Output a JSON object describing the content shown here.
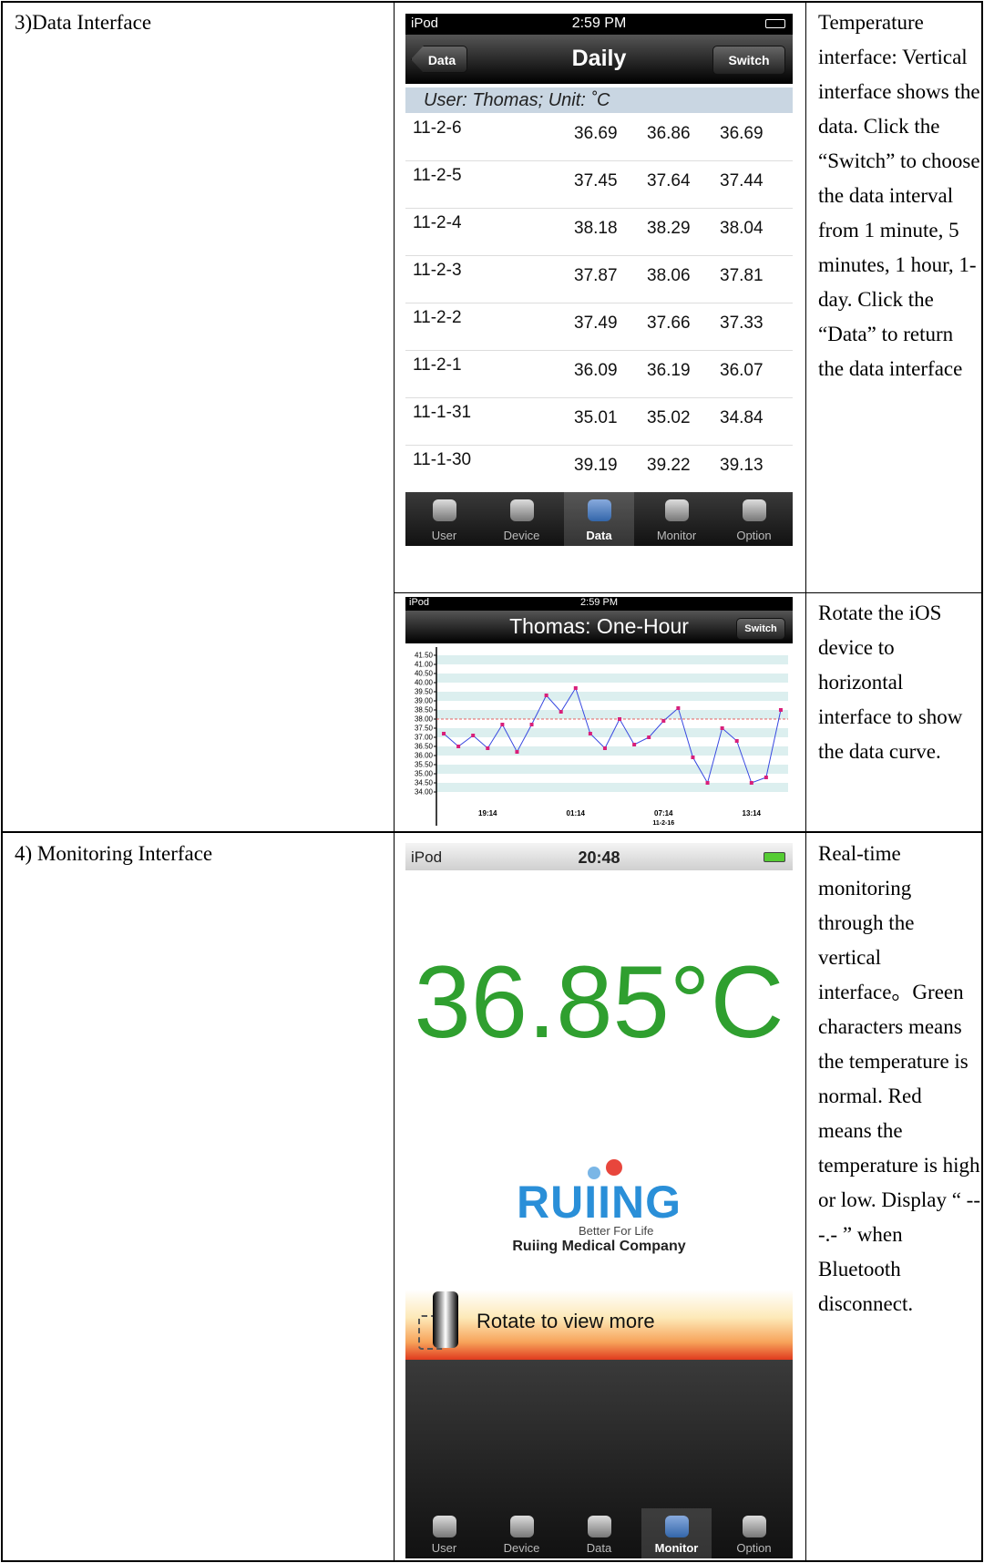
{
  "sections": [
    {
      "heading": "3)Data Interface",
      "daily_screen": {
        "status": {
          "carrier": "iPod",
          "time": "2:59 PM"
        },
        "back_button": "Data",
        "title": "Daily",
        "switch_button": "Switch",
        "subheader": "User: Thomas; Unit: ˚C",
        "rows": [
          [
            "11-2-6",
            "36.69",
            "36.86",
            "36.69"
          ],
          [
            "11-2-5",
            "37.45",
            "37.64",
            "37.44"
          ],
          [
            "11-2-4",
            "38.18",
            "38.29",
            "38.04"
          ],
          [
            "11-2-3",
            "37.87",
            "38.06",
            "37.81"
          ],
          [
            "11-2-2",
            "37.49",
            "37.66",
            "37.33"
          ],
          [
            "11-2-1",
            "36.09",
            "36.19",
            "36.07"
          ],
          [
            "11-1-31",
            "35.01",
            "35.02",
            "34.84"
          ],
          [
            "11-1-30",
            "39.19",
            "39.22",
            "39.13"
          ]
        ],
        "tabs": [
          "User",
          "Device",
          "Data",
          "Monitor",
          "Option"
        ],
        "selected_tab": 2
      },
      "daily_description": "Temperature interface: Vertical interface shows the data. Click the “Switch” to choose the data interval from 1 minute, 5 minutes, 1 hour, 1-day. Click the “Data” to return the data interface",
      "chart_screen": {
        "status": {
          "carrier": "iPod",
          "time": "2:59 PM"
        },
        "title": "Thomas: One-Hour",
        "switch_button": "Switch",
        "chart": {
          "type": "line",
          "categories": [
            null,
            null,
            null,
            "19:14",
            null,
            null,
            null,
            null,
            null,
            "01:14",
            null,
            null,
            null,
            null,
            null,
            "07:14",
            null,
            null,
            null,
            null,
            null,
            "13:14",
            null,
            null
          ],
          "x_sublabels": [
            null,
            null,
            null,
            null,
            null,
            null,
            null,
            null,
            null,
            null,
            null,
            null,
            null,
            null,
            null,
            "11-2-16",
            null,
            null,
            null,
            null,
            null,
            null,
            null,
            null
          ],
          "values": [
            37.2,
            36.5,
            37.1,
            36.4,
            37.7,
            36.2,
            37.7,
            39.3,
            38.4,
            39.7,
            37.2,
            36.4,
            38.0,
            36.6,
            37.0,
            37.9,
            38.6,
            35.9,
            34.5,
            37.5,
            36.8,
            34.5,
            34.8,
            38.5
          ],
          "color": "#3848e0",
          "marker_color": "#d81f7a",
          "reference_line": 38,
          "reference_color": "#e03030",
          "band_color": "#dcefef",
          "ylim": [
            33.75,
            41.75
          ],
          "yticks": [
            {
              "value": 34,
              "label": "34.00"
            },
            {
              "value": 34.5,
              "label": "34.50"
            },
            {
              "value": 35,
              "label": "35.00"
            },
            {
              "value": 35.5,
              "label": "35.50"
            },
            {
              "value": 36,
              "label": "36.00"
            },
            {
              "value": 36.5,
              "label": "36.50"
            },
            {
              "value": 37,
              "label": "37.00"
            },
            {
              "value": 37.5,
              "label": "37.50"
            },
            {
              "value": 38,
              "label": "38.00"
            },
            {
              "value": 38.5,
              "label": "38.50"
            },
            {
              "value": 39,
              "label": "39.00"
            },
            {
              "value": 39.5,
              "label": "39.50"
            },
            {
              "value": 40,
              "label": "40.00"
            },
            {
              "value": 40.5,
              "label": "40.50"
            },
            {
              "value": 41,
              "label": "41.00"
            },
            {
              "value": 41.5,
              "label": "41.50"
            }
          ]
        }
      },
      "chart_description": "Rotate the iOS device to horizontal interface to show the data curve."
    },
    {
      "heading": "4) Monitoring Interface",
      "monitor_screen": {
        "status": {
          "carrier": "iPod",
          "time": "20:48"
        },
        "temperature": "36.85°C",
        "temperature_color": "#2f9f2f",
        "logo": "RUIING",
        "tagline": "Better For Life",
        "company": "Ruiing Medical Company",
        "banner": "Rotate to view more",
        "tabs": [
          "User",
          "Device",
          "Data",
          "Monitor",
          "Option"
        ],
        "selected_tab": 3
      },
      "description": "Real-time monitoring through the vertical interface。Green characters means the temperature is normal. Red means the temperature is high or low. Display “ ---.- ” when Bluetooth disconnect."
    }
  ]
}
